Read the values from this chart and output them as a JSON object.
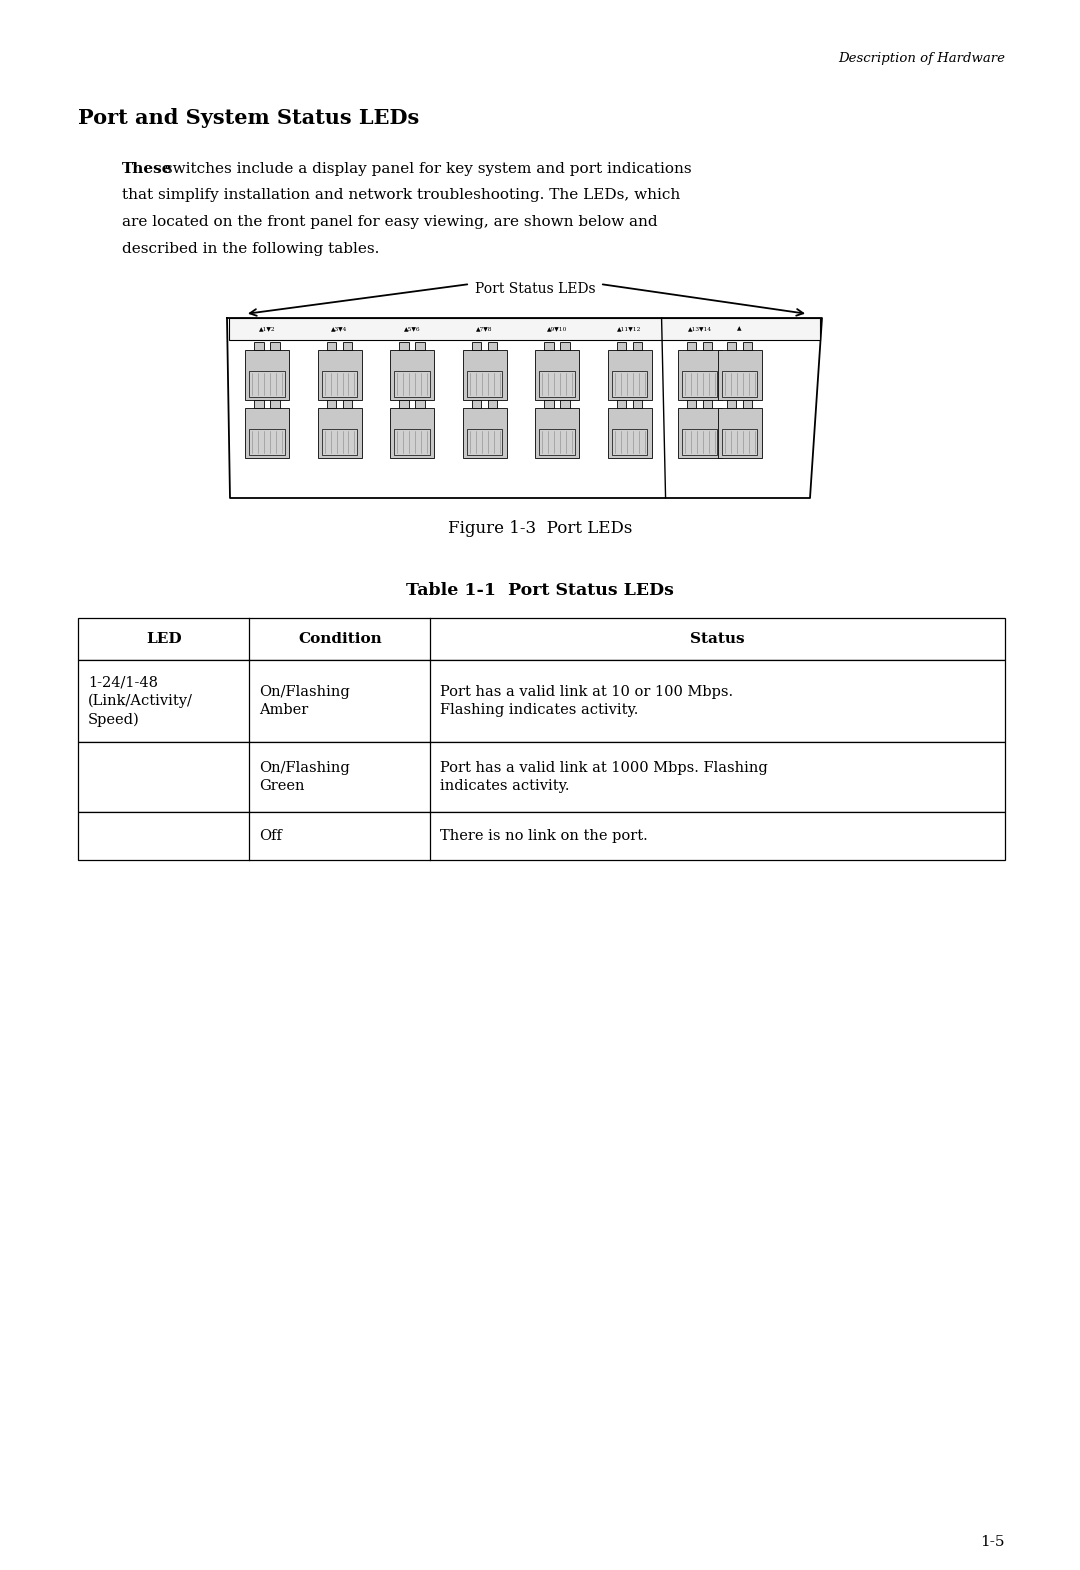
{
  "header_text": "Description of Hardware",
  "section_title": "Port and System Status LEDs",
  "body_line1_bold": "These",
  "body_line1_rest": " switches include a display panel for key system and port indications",
  "body_line2": "that simplify installation and network troubleshooting. The LEDs, which",
  "body_line3": "are located on the front panel for easy viewing, are shown below and",
  "body_line4": "described in the following tables.",
  "figure_label": "Port Status LEDs",
  "figure_caption": "Figure 1-3  Port LEDs",
  "table_title": "Table 1-1  Port Status LEDs",
  "table_headers": [
    "LED",
    "Condition",
    "Status"
  ],
  "table_row0_col0": "1-24/1-48\n(Link/Activity/\nSpeed)",
  "table_row0_col1": "On/Flashing\nAmber",
  "table_row0_col2": "Port has a valid link at 10 or 100 Mbps.\nFlashing indicates activity.",
  "table_row1_col0": "",
  "table_row1_col1": "On/Flashing\nGreen",
  "table_row1_col2": "Port has a valid link at 1000 Mbps. Flashing\nindicates activity.",
  "table_row2_col0": "",
  "table_row2_col1": "Off",
  "table_row2_col2": "There is no link on the port.",
  "page_number": "1-5",
  "bg_color": "#ffffff",
  "text_color": "#000000",
  "panel_fill": "#ffffff",
  "port_fill": "#c8c8c8",
  "led_strip_fill": "#f5f5f5"
}
